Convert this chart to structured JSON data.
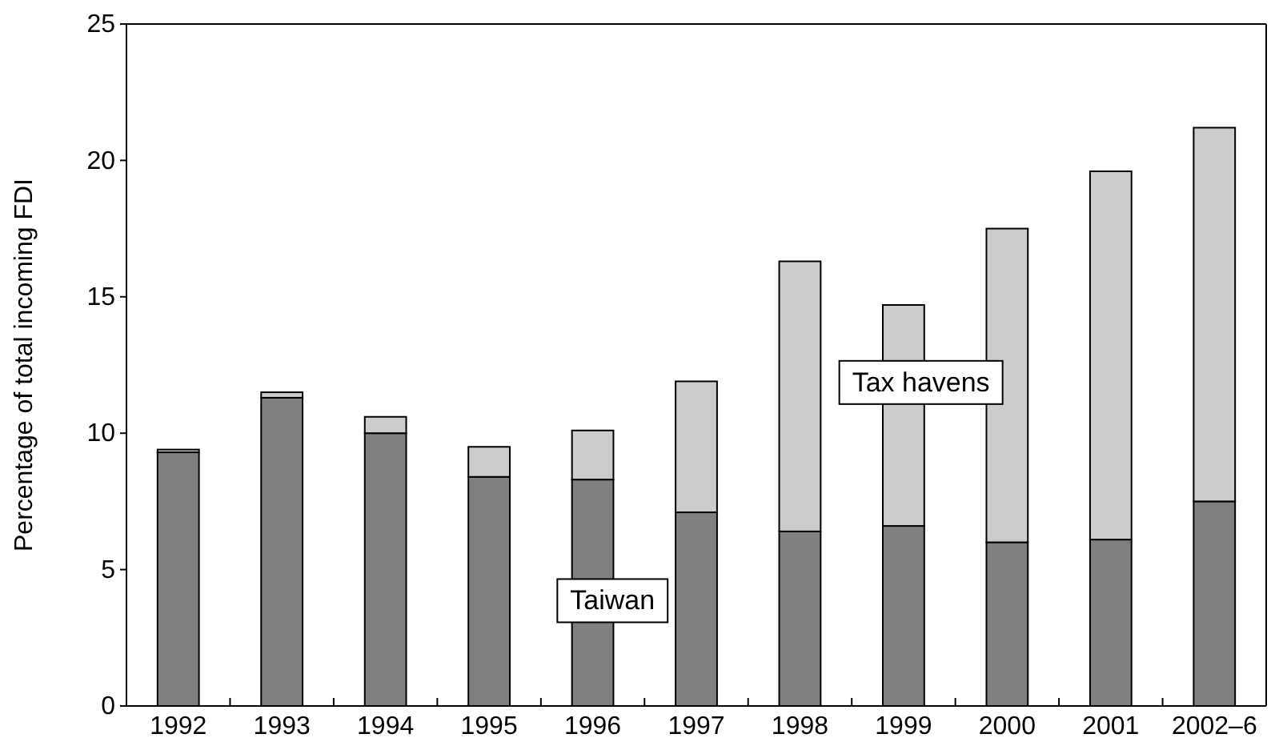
{
  "chart_data": {
    "type": "bar",
    "stacked": true,
    "ylabel": "Percentage of total incoming FDI",
    "categories": [
      "1992",
      "1993",
      "1994",
      "1995",
      "1996",
      "1997",
      "1998",
      "1999",
      "2000",
      "2001",
      "2002–6"
    ],
    "series": [
      {
        "name": "Taiwan",
        "color": "#808080",
        "values": [
          9.3,
          11.3,
          10.0,
          8.4,
          8.3,
          7.1,
          6.4,
          6.6,
          6.0,
          6.1,
          7.5
        ]
      },
      {
        "name": "Tax havens",
        "color": "#cccccc",
        "values": [
          0.1,
          0.2,
          0.6,
          1.1,
          1.8,
          4.8,
          9.9,
          8.1,
          11.5,
          13.5,
          13.7
        ]
      }
    ],
    "ylim": [
      0,
      25
    ],
    "yticks": [
      0,
      5,
      10,
      15,
      20,
      25
    ],
    "grid": false,
    "legend": false
  }
}
